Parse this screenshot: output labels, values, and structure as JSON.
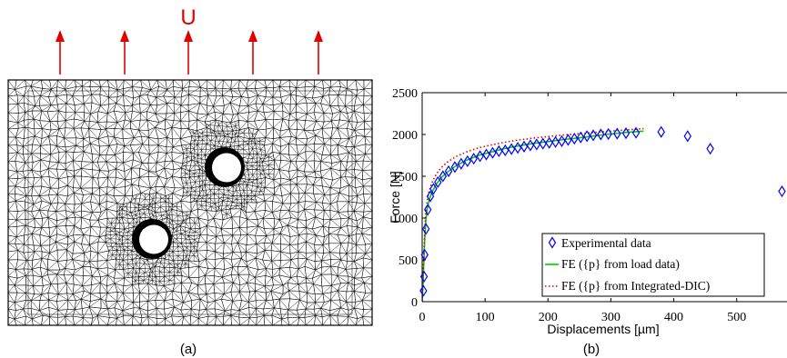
{
  "panel_a": {
    "load_label": "U",
    "caption": "(a)",
    "colors": {
      "arrow": "#e00000",
      "mesh": "#000000",
      "hole_fill": "#ffffff"
    }
  },
  "panel_b": {
    "caption": "(b)"
  },
  "chart_data": {
    "type": "scatter",
    "xlabel": "Displacements [µm]",
    "ylabel": "Force [N]",
    "xlim": [
      0,
      580
    ],
    "ylim": [
      0,
      2500
    ],
    "xticks": [
      0,
      100,
      200,
      300,
      400,
      500
    ],
    "yticks": [
      0,
      500,
      1000,
      1500,
      2000,
      2500
    ],
    "grid": false,
    "legend_position": "bottom-right",
    "series": [
      {
        "name": "Experimental data",
        "style": "markers",
        "marker": "diamond-open",
        "color": "#0000ff",
        "x": [
          2,
          3,
          4,
          6,
          9,
          13,
          18,
          25,
          33,
          42,
          52,
          62,
          72,
          82,
          92,
          102,
          112,
          122,
          132,
          142,
          152,
          162,
          172,
          182,
          192,
          202,
          212,
          222,
          232,
          242,
          252,
          262,
          272,
          284,
          296,
          310,
          324,
          340,
          380,
          422,
          458,
          572
        ],
        "y": [
          130,
          300,
          560,
          870,
          1100,
          1260,
          1350,
          1430,
          1500,
          1560,
          1610,
          1650,
          1680,
          1710,
          1740,
          1760,
          1780,
          1800,
          1810,
          1825,
          1840,
          1855,
          1870,
          1880,
          1890,
          1900,
          1910,
          1920,
          1935,
          1950,
          1965,
          1980,
          1990,
          2000,
          2005,
          2010,
          2015,
          2020,
          2030,
          1980,
          1830,
          1320
        ]
      },
      {
        "name": "FE ({p} from load data)",
        "style": "line-solid",
        "color": "#00cc00",
        "x": [
          0,
          2,
          4,
          6,
          8,
          10,
          13,
          17,
          22,
          30,
          40,
          55,
          70,
          90,
          110,
          130,
          150,
          175,
          200,
          225,
          250,
          275,
          300,
          325,
          352
        ],
        "y": [
          0,
          350,
          750,
          980,
          1100,
          1180,
          1260,
          1330,
          1400,
          1480,
          1550,
          1630,
          1690,
          1750,
          1790,
          1830,
          1860,
          1890,
          1915,
          1940,
          1960,
          1985,
          2005,
          2025,
          2040
        ]
      },
      {
        "name": "FE ({p} from Integrated-DIC)",
        "style": "line-dotted",
        "color": "#e00000",
        "x": [
          0,
          2,
          4,
          6,
          8,
          10,
          13,
          17,
          22,
          30,
          40,
          55,
          70,
          90,
          110,
          130,
          150,
          175,
          200,
          225,
          250,
          275,
          300,
          325,
          352
        ],
        "y": [
          0,
          420,
          850,
          1080,
          1200,
          1290,
          1370,
          1450,
          1520,
          1600,
          1670,
          1740,
          1790,
          1840,
          1875,
          1905,
          1930,
          1955,
          1975,
          1995,
          2010,
          2025,
          2040,
          2055,
          2070
        ]
      }
    ]
  }
}
